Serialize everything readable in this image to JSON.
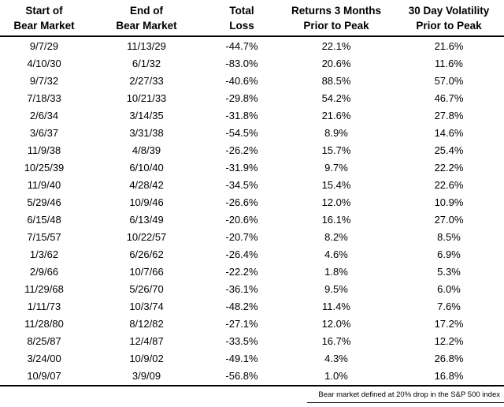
{
  "headers": [
    [
      "Start of",
      "Bear Market"
    ],
    [
      "End of",
      "Bear Market"
    ],
    [
      "Total",
      "Loss"
    ],
    [
      "Returns 3 Months",
      "Prior to Peak"
    ],
    [
      "30 Day Volatility",
      "Prior to Peak"
    ]
  ],
  "chart_data": {
    "type": "table",
    "columns": [
      "Start of Bear Market",
      "End of Bear Market",
      "Total Loss",
      "Returns 3 Months Prior to Peak",
      "30 Day Volatility Prior to Peak"
    ],
    "rows": [
      [
        "9/7/29",
        "11/13/29",
        "-44.7%",
        "22.1%",
        "21.6%"
      ],
      [
        "4/10/30",
        "6/1/32",
        "-83.0%",
        "20.6%",
        "11.6%"
      ],
      [
        "9/7/32",
        "2/27/33",
        "-40.6%",
        "88.5%",
        "57.0%"
      ],
      [
        "7/18/33",
        "10/21/33",
        "-29.8%",
        "54.2%",
        "46.7%"
      ],
      [
        "2/6/34",
        "3/14/35",
        "-31.8%",
        "21.6%",
        "27.8%"
      ],
      [
        "3/6/37",
        "3/31/38",
        "-54.5%",
        "8.9%",
        "14.6%"
      ],
      [
        "11/9/38",
        "4/8/39",
        "-26.2%",
        "15.7%",
        "25.4%"
      ],
      [
        "10/25/39",
        "6/10/40",
        "-31.9%",
        "9.7%",
        "22.2%"
      ],
      [
        "11/9/40",
        "4/28/42",
        "-34.5%",
        "15.4%",
        "22.6%"
      ],
      [
        "5/29/46",
        "10/9/46",
        "-26.6%",
        "12.0%",
        "10.9%"
      ],
      [
        "6/15/48",
        "6/13/49",
        "-20.6%",
        "16.1%",
        "27.0%"
      ],
      [
        "7/15/57",
        "10/22/57",
        "-20.7%",
        "8.2%",
        "8.5%"
      ],
      [
        "1/3/62",
        "6/26/62",
        "-26.4%",
        "4.6%",
        "6.9%"
      ],
      [
        "2/9/66",
        "10/7/66",
        "-22.2%",
        "1.8%",
        "5.3%"
      ],
      [
        "11/29/68",
        "5/26/70",
        "-36.1%",
        "9.5%",
        "6.0%"
      ],
      [
        "1/11/73",
        "10/3/74",
        "-48.2%",
        "11.4%",
        "7.6%"
      ],
      [
        "11/28/80",
        "8/12/82",
        "-27.1%",
        "12.0%",
        "17.2%"
      ],
      [
        "8/25/87",
        "12/4/87",
        "-33.5%",
        "16.7%",
        "12.2%"
      ],
      [
        "3/24/00",
        "10/9/02",
        "-49.1%",
        "4.3%",
        "26.8%"
      ],
      [
        "10/9/07",
        "3/9/09",
        "-56.8%",
        "1.0%",
        "16.8%"
      ]
    ],
    "footnote": "Bear market defined at 20% drop in the S&P 500 index"
  }
}
